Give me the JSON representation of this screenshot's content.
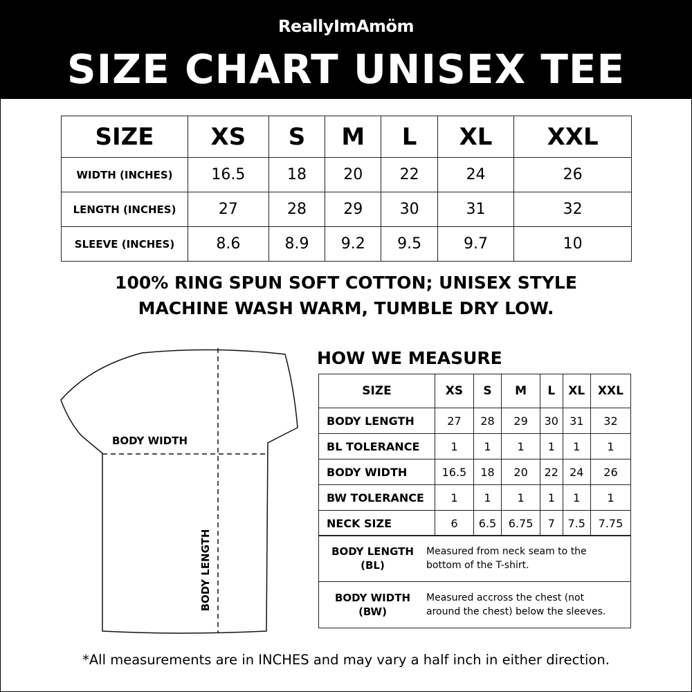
{
  "brand": "ReallyImAmöm",
  "title": "SIZE CHART UNISEX TEE",
  "size_table": {
    "header": [
      "SIZE",
      "XS",
      "S",
      "M",
      "L",
      "XL",
      "XXL"
    ],
    "rows": [
      {
        "label": "WIDTH (INCHES)",
        "values": [
          "16.5",
          "18",
          "20",
          "22",
          "24",
          "26"
        ]
      },
      {
        "label": "LENGTH (INCHES)",
        "values": [
          "27",
          "28",
          "29",
          "30",
          "31",
          "32"
        ]
      },
      {
        "label": "SLEEVE (INCHES)",
        "values": [
          "8.6",
          "8.9",
          "9.2",
          "9.5",
          "9.7",
          "10"
        ]
      }
    ]
  },
  "notes": [
    "100% RING SPUN SOFT COTTON; UNISEX STYLE",
    "MACHINE WASH WARM, TUMBLE DRY LOW."
  ],
  "diagram": {
    "body_width": "BODY WIDTH",
    "body_length": "BODY LENGTH"
  },
  "measure": {
    "heading": "HOW WE MEASURE",
    "header": [
      "SIZE",
      "XS",
      "S",
      "M",
      "L",
      "XL",
      "XXL"
    ],
    "rows": [
      {
        "label": "BODY LENGTH",
        "values": [
          "27",
          "28",
          "29",
          "30",
          "31",
          "32"
        ]
      },
      {
        "label": "BL TOLERANCE",
        "values": [
          "1",
          "1",
          "1",
          "1",
          "1",
          "1"
        ]
      },
      {
        "label": "BODY WIDTH",
        "values": [
          "16.5",
          "18",
          "20",
          "22",
          "24",
          "26"
        ]
      },
      {
        "label": "BW TOLERANCE",
        "values": [
          "1",
          "1",
          "1",
          "1",
          "1",
          "1"
        ]
      },
      {
        "label": "NECK SIZE",
        "values": [
          "6",
          "6.5",
          "6.75",
          "7",
          "7.5",
          "7.75"
        ]
      }
    ],
    "definitions": [
      {
        "term": "BODY LENGTH",
        "abbr": "(BL)",
        "line1": "Measured from neck seam to the",
        "line2": "bottom of the T-shirt."
      },
      {
        "term": "BODY WIDTH",
        "abbr": "(BW)",
        "line1": "Measured accross the chest (not",
        "line2": "around the chest) below the sleeves."
      }
    ]
  },
  "footnote": "*All measurements are in INCHES and may vary a half inch in either direction."
}
